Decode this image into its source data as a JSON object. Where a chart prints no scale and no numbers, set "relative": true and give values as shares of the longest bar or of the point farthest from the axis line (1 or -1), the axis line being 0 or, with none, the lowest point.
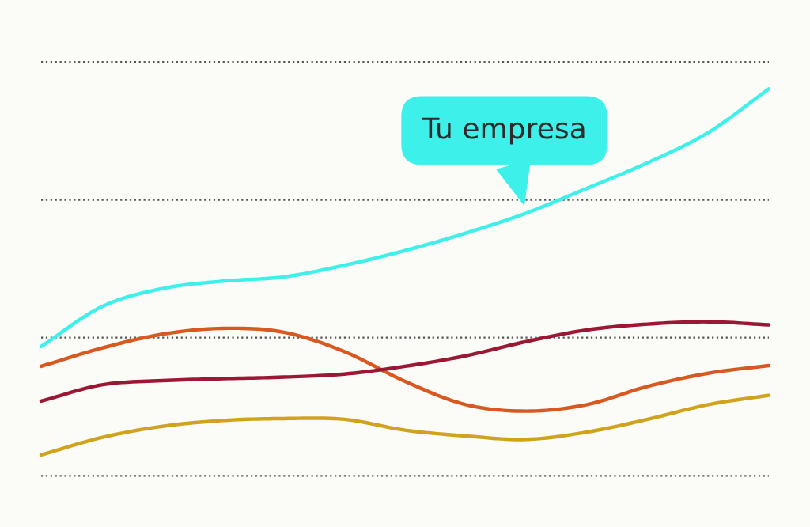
{
  "chart_data": {
    "type": "line",
    "relative": true,
    "categories": [
      null,
      null,
      null,
      null,
      null,
      null,
      null,
      null,
      null,
      null,
      null,
      null,
      null
    ],
    "series": [
      {
        "name": "Tu empresa",
        "color": "#3ef0ea",
        "values": [
          0.334,
          0.437,
          0.484,
          0.503,
          0.514,
          0.544,
          0.582,
          0.627,
          0.679,
          0.743,
          0.809,
          0.887,
          1
        ]
      },
      {
        "color": "#d9581f",
        "values": [
          0.283,
          0.33,
          0.366,
          0.381,
          0.371,
          0.321,
          0.244,
          0.184,
          0.167,
          0.184,
          0.231,
          0.265,
          0.285
        ]
      },
      {
        "color": "#9b1733",
        "values": [
          0.193,
          0.235,
          0.246,
          0.251,
          0.255,
          0.263,
          0.283,
          0.31,
          0.347,
          0.377,
          0.392,
          0.398,
          0.39
        ]
      },
      {
        "color": "#d1a21c",
        "values": [
          0.054,
          0.099,
          0.128,
          0.143,
          0.148,
          0.146,
          0.118,
          0.103,
          0.094,
          0.113,
          0.146,
          0.184,
          0.208
        ]
      }
    ],
    "ref_lines": [
      {
        "axis": "y",
        "value": 0,
        "color": "#555555",
        "line_style": "dotted"
      },
      {
        "axis": "y",
        "value": 0.357,
        "color": "#555555",
        "line_style": "dotted"
      },
      {
        "axis": "y",
        "value": 0.713,
        "color": "#555555",
        "line_style": "dotted"
      },
      {
        "axis": "y",
        "value": 1.07,
        "color": "#555555",
        "line_style": "dotted"
      }
    ],
    "legend": false,
    "line_style": "solid",
    "marker": "none"
  }
}
